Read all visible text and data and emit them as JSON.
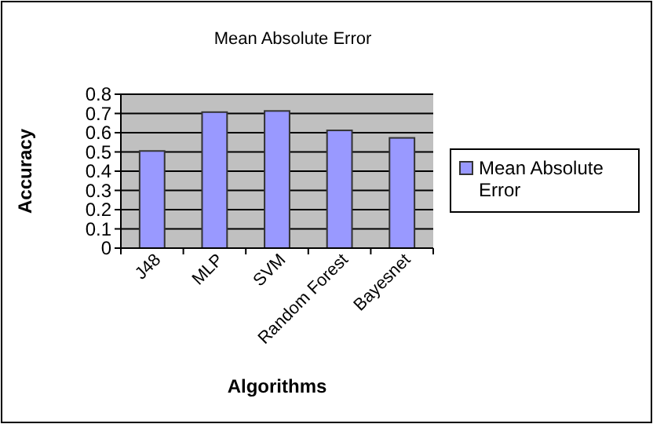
{
  "chart_data": {
    "type": "bar",
    "title": "Mean Absolute Error",
    "xlabel": "Algorithms",
    "ylabel": "Accuracy",
    "categories": [
      "J48",
      "MLP",
      "SVM",
      "Random Forest",
      "Bayesnet"
    ],
    "series": [
      {
        "name": "Mean Absolute Error",
        "color": "#9999ff",
        "values": [
          0.505,
          0.707,
          0.713,
          0.612,
          0.573
        ]
      }
    ],
    "ylim": [
      0,
      0.8
    ],
    "yticks": [
      0,
      0.1,
      0.2,
      0.3,
      0.4,
      0.5,
      0.6,
      0.7,
      0.8
    ],
    "grid": "y",
    "legend": "right"
  }
}
